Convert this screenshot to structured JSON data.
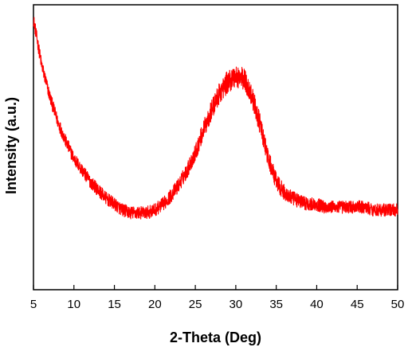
{
  "chart_data": {
    "type": "line",
    "xlabel": "2-Theta (Deg)",
    "ylabel": "Intensity (a.u.)",
    "xlim": [
      5,
      50
    ],
    "ylim": [
      0,
      100
    ],
    "x_ticks": [
      5,
      10,
      15,
      20,
      25,
      30,
      35,
      40,
      45,
      50
    ],
    "y_ticks_shown": false,
    "grid": false,
    "line_color": "#ff0000",
    "noise": true,
    "series": [
      {
        "x": [
          5,
          6,
          7,
          8,
          9,
          10,
          11,
          12,
          13,
          14,
          15,
          16,
          17,
          18,
          19,
          20,
          21,
          22,
          23,
          24,
          25,
          26,
          27,
          28,
          29,
          30,
          31,
          32,
          33,
          34,
          35,
          36,
          37,
          38,
          39,
          40,
          41,
          42,
          43,
          44,
          45,
          46,
          47,
          48,
          49,
          50
        ],
        "y": [
          95,
          79,
          68,
          59,
          52,
          46,
          42,
          38,
          35,
          32,
          30,
          28,
          27,
          27,
          27,
          28,
          30,
          33,
          37,
          42,
          48,
          56,
          63,
          69,
          73,
          75,
          74,
          68,
          58,
          46,
          38,
          34,
          32,
          31,
          30,
          30,
          29,
          29,
          29,
          29,
          29,
          29,
          28,
          28,
          28,
          28
        ]
      }
    ]
  }
}
